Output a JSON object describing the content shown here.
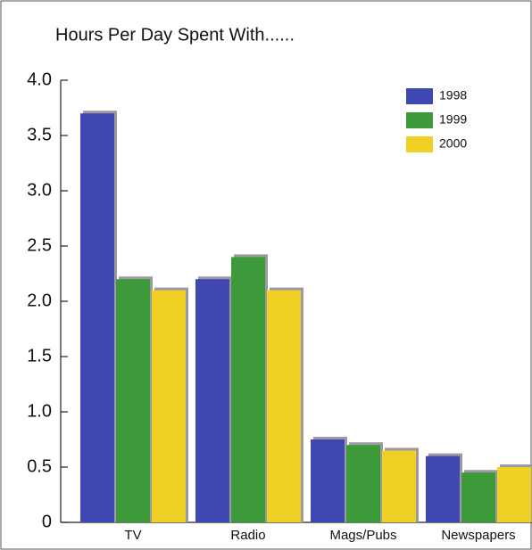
{
  "chart_data": {
    "type": "bar",
    "title": "Hours Per Day Spent With......",
    "categories": [
      "TV",
      "Radio",
      "Mags/Pubs",
      "Newspapers"
    ],
    "series": [
      {
        "name": "1998",
        "color": "#3f47b3",
        "values": [
          3.7,
          2.2,
          0.75,
          0.6
        ]
      },
      {
        "name": "1999",
        "color": "#3c9a3a",
        "values": [
          2.2,
          2.4,
          0.7,
          0.45
        ]
      },
      {
        "name": "2000",
        "color": "#f0d024",
        "values": [
          2.1,
          2.1,
          0.65,
          0.5
        ]
      }
    ],
    "ylim": [
      0,
      4
    ],
    "yticks": [
      {
        "value": 4,
        "label": "4.0"
      },
      3.5,
      {
        "value": 3,
        "label": "3.0"
      },
      2.5,
      {
        "value": 2,
        "label": "2.0"
      },
      1.5,
      {
        "value": 1,
        "label": "1.0"
      },
      0.5,
      0
    ],
    "legend": "upper right"
  }
}
